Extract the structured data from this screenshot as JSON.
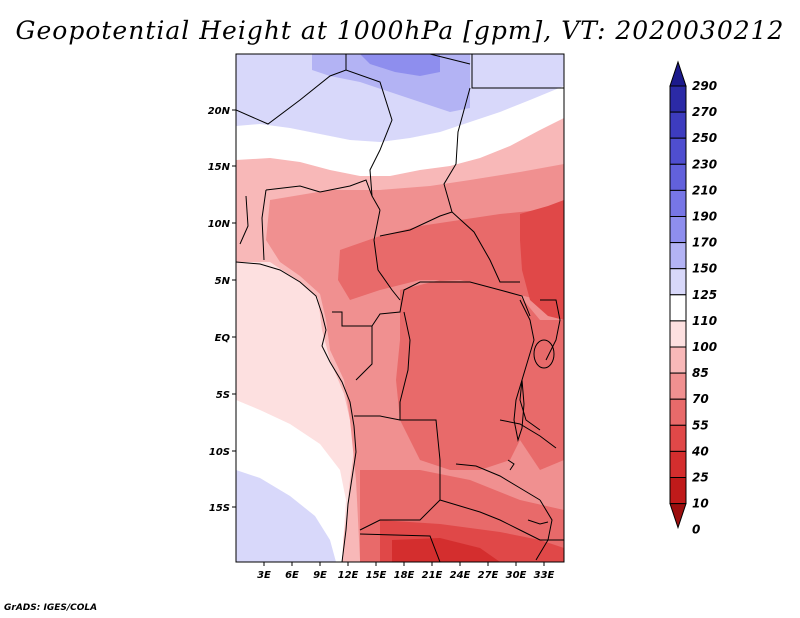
{
  "title": "Geopotential Height at 1000hPa [gpm], VT: 2020030212",
  "credit": "GrADS: IGES/COLA",
  "map": {
    "lat_labels": [
      "20N",
      "15N",
      "10N",
      "5N",
      "EQ",
      "5S",
      "10S",
      "15S"
    ],
    "lon_labels": [
      "3E",
      "6E",
      "9E",
      "12E",
      "15E",
      "18E",
      "21E",
      "24E",
      "27E",
      "30E",
      "33E"
    ]
  },
  "colorbar": {
    "levels": [
      "290",
      "270",
      "250",
      "230",
      "210",
      "190",
      "170",
      "150",
      "125",
      "110",
      "100",
      "85",
      "70",
      "55",
      "40",
      "25",
      "10",
      "0"
    ],
    "colors": [
      "#1c1a8c",
      "#2b2aa6",
      "#3d3cbf",
      "#4f4ed0",
      "#6261dc",
      "#7776e6",
      "#8e8eee",
      "#b3b3f4",
      "#d8d8fa",
      "#ffffff",
      "#fde0e0",
      "#f8b8b8",
      "#f09090",
      "#e86a6a",
      "#e04848",
      "#d42e2e",
      "#c01a1a",
      "#9c0e0e"
    ]
  },
  "colors": {
    "ocean_west": "#fde0e0",
    "ocean_south": "#d8d8fa",
    "sahara": "#d8d8fa",
    "sahel": "#ffffff",
    "land_light": "#f8b8b8",
    "land_mid": "#f09090",
    "land_warm": "#e86a6a",
    "land_hot": "#e04848",
    "land_hottest": "#d42e2e",
    "north_high": "#b3b3f4",
    "north_higher": "#8e8eee"
  }
}
